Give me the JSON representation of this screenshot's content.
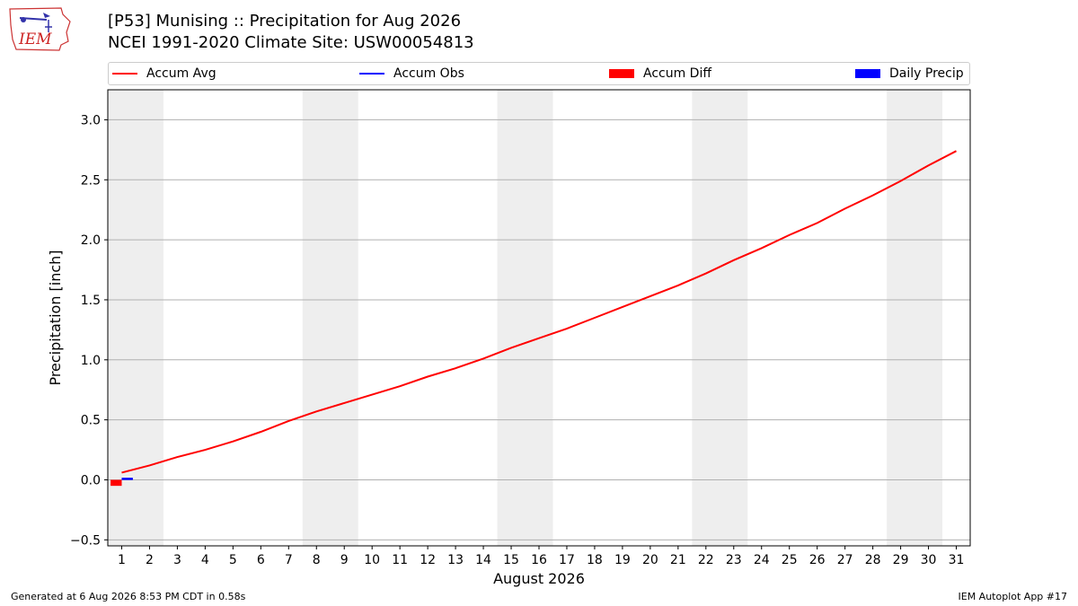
{
  "header": {
    "title_line1": "[P53] Munising :: Precipitation for Aug 2026",
    "title_line2": "NCEI 1991-2020 Climate Site: USW00054813",
    "logo_text": "IEM"
  },
  "footer": {
    "left": "Generated at 6 Aug 2026 8:53 PM CDT in 0.58s",
    "right": "IEM Autoplot App #17"
  },
  "legend": [
    {
      "label": "Accum Avg",
      "kind": "line",
      "color": "#ff0000"
    },
    {
      "label": "Accum Obs",
      "kind": "line",
      "color": "#0000ff"
    },
    {
      "label": "Accum Diff",
      "kind": "box",
      "color": "#ff0000"
    },
    {
      "label": "Daily Precip",
      "kind": "box",
      "color": "#0000ff"
    }
  ],
  "colors": {
    "avg": "#ff0000",
    "obs": "#0000ff",
    "diff": "#ff0000",
    "daily": "#0000ff",
    "weekend_band": "#eeeeee",
    "grid": "#b0b0b0"
  },
  "chart_data": {
    "type": "line",
    "xlabel": "August 2026",
    "ylabel": "Precipitation [inch]",
    "xlim": [
      0.5,
      31.5
    ],
    "ylim": [
      -0.55,
      3.25
    ],
    "yticks": [
      -0.5,
      0.0,
      0.5,
      1.0,
      1.5,
      2.0,
      2.5,
      3.0
    ],
    "ytick_labels": [
      "−0.5",
      "0.0",
      "0.5",
      "1.0",
      "1.5",
      "2.0",
      "2.5",
      "3.0"
    ],
    "x": [
      1,
      2,
      3,
      4,
      5,
      6,
      7,
      8,
      9,
      10,
      11,
      12,
      13,
      14,
      15,
      16,
      17,
      18,
      19,
      20,
      21,
      22,
      23,
      24,
      25,
      26,
      27,
      28,
      29,
      30,
      31
    ],
    "xtick_labels": [
      "1",
      "2",
      "3",
      "4",
      "5",
      "6",
      "7",
      "8",
      "9",
      "10",
      "11",
      "12",
      "13",
      "14",
      "15",
      "16",
      "17",
      "18",
      "19",
      "20",
      "21",
      "22",
      "23",
      "24",
      "25",
      "26",
      "27",
      "28",
      "29",
      "30",
      "31"
    ],
    "weekend_bands": [
      [
        0.5,
        2.5
      ],
      [
        7.5,
        9.5
      ],
      [
        14.5,
        16.5
      ],
      [
        21.5,
        23.5
      ],
      [
        28.5,
        30.5
      ]
    ],
    "grid": "horizontal",
    "legend_position": "top",
    "series": [
      {
        "name": "Accum Avg",
        "type": "line",
        "x": [
          1,
          2,
          3,
          4,
          5,
          6,
          7,
          8,
          9,
          10,
          11,
          12,
          13,
          14,
          15,
          16,
          17,
          18,
          19,
          20,
          21,
          22,
          23,
          24,
          25,
          26,
          27,
          28,
          29,
          30,
          31
        ],
        "values": [
          0.06,
          0.12,
          0.19,
          0.25,
          0.32,
          0.4,
          0.49,
          0.57,
          0.64,
          0.71,
          0.78,
          0.86,
          0.93,
          1.01,
          1.1,
          1.18,
          1.26,
          1.35,
          1.44,
          1.53,
          1.62,
          1.72,
          1.83,
          1.93,
          2.04,
          2.14,
          2.26,
          2.37,
          2.49,
          2.62,
          2.74
        ]
      },
      {
        "name": "Accum Obs",
        "type": "line",
        "x": [
          1,
          1.4
        ],
        "values": [
          0.01,
          0.01
        ]
      },
      {
        "name": "Accum Diff",
        "type": "bar",
        "x": [
          1
        ],
        "values": [
          -0.05
        ]
      },
      {
        "name": "Daily Precip",
        "type": "bar",
        "x": [
          1
        ],
        "values": [
          0.01
        ]
      }
    ]
  }
}
